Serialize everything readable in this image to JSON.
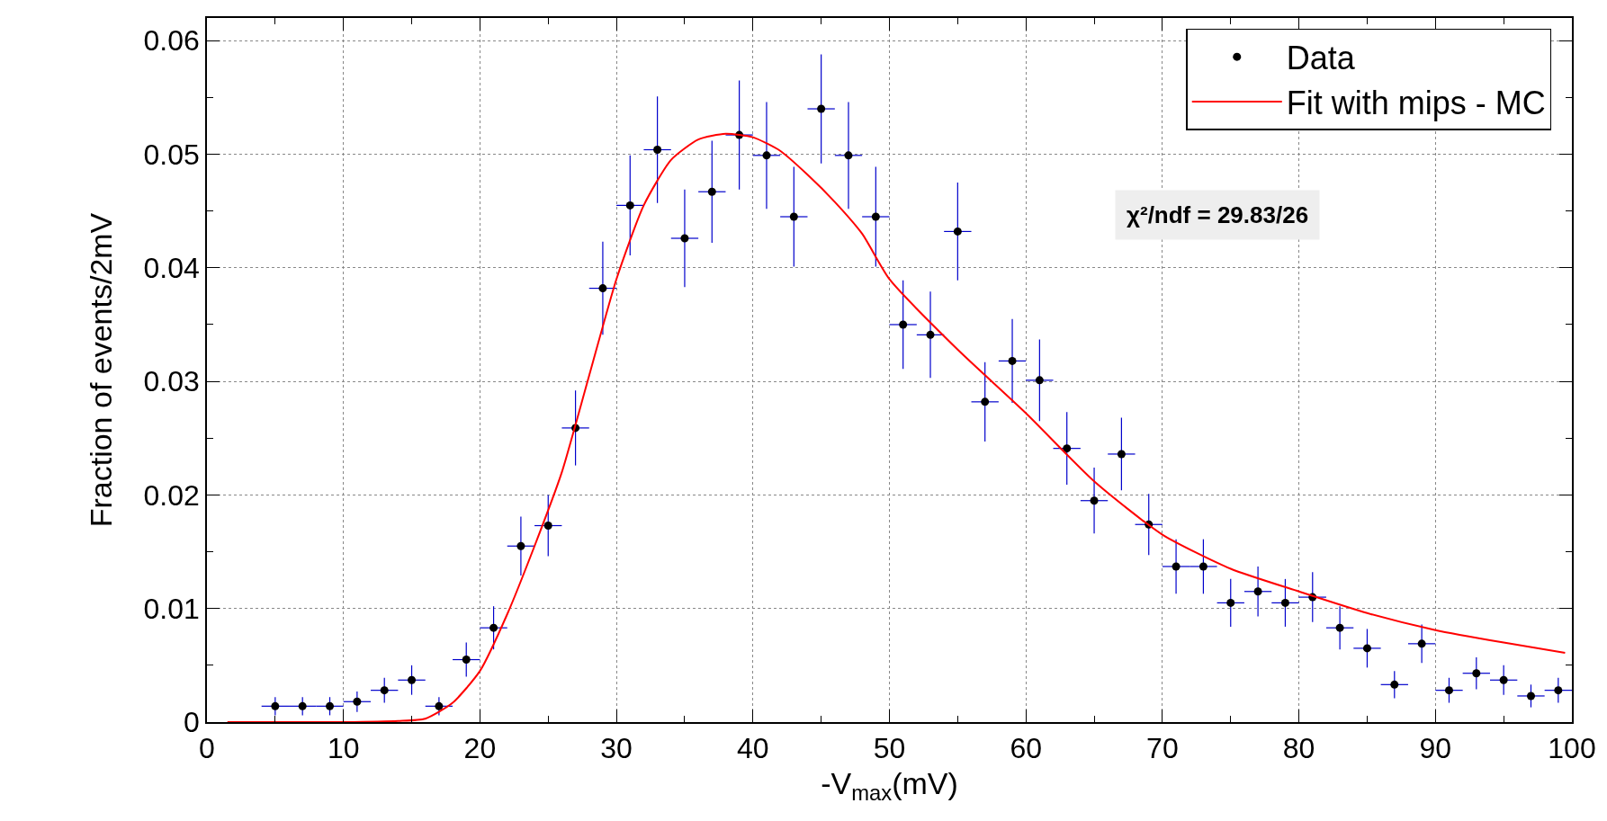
{
  "chart_data": {
    "type": "scatter",
    "xlabel": "-V$_{max}$(mV)",
    "ylabel": "Fraction of events/2mV",
    "xlim": [
      0,
      100
    ],
    "xticks": [
      0,
      10,
      20,
      30,
      40,
      50,
      60,
      70,
      80,
      90,
      100
    ],
    "ylim": [
      0,
      0.062
    ],
    "yticks": [
      0,
      0.01,
      0.02,
      0.03,
      0.04,
      0.05,
      0.06
    ],
    "grid": true,
    "legend": "top right",
    "annotations": [
      "χ²/ndf = 29.83/26"
    ],
    "series": [
      {
        "name": "Data",
        "marker": "circle",
        "color": "#000000",
        "x": [
          5,
          7,
          9,
          11,
          13,
          15,
          17,
          19,
          21,
          23,
          25,
          27,
          29,
          31,
          33,
          35,
          37,
          39,
          41,
          43,
          45,
          47,
          49,
          51,
          53,
          55,
          57,
          59,
          61,
          63,
          65,
          67,
          69,
          71,
          73,
          75,
          77,
          79,
          81,
          83,
          85,
          87,
          89,
          91,
          93,
          95,
          97,
          99
        ],
        "values": [
          0.0014,
          0.0014,
          0.0014,
          0.0018,
          0.0028,
          0.0037,
          0.0014,
          0.0055,
          0.0083,
          0.0155,
          0.0173,
          0.0259,
          0.0382,
          0.0455,
          0.0504,
          0.0426,
          0.0467,
          0.0517,
          0.0499,
          0.0445,
          0.054,
          0.0499,
          0.0445,
          0.035,
          0.0341,
          0.0432,
          0.0282,
          0.0318,
          0.0301,
          0.0241,
          0.0195,
          0.0236,
          0.0174,
          0.0137,
          0.0137,
          0.0105,
          0.0115,
          0.0105,
          0.011,
          0.0083,
          0.0065,
          0.0033,
          0.0069,
          0.0028,
          0.0043,
          0.0037,
          0.0023,
          0.0028
        ],
        "errors": [
          0.0008,
          0.0008,
          0.0008,
          0.0009,
          0.0011,
          0.0013,
          0.0008,
          0.0015,
          0.0019,
          0.0026,
          0.0027,
          0.0033,
          0.0041,
          0.0044,
          0.0047,
          0.0043,
          0.0045,
          0.0048,
          0.0047,
          0.0044,
          0.0048,
          0.0047,
          0.0044,
          0.0039,
          0.0038,
          0.0043,
          0.0035,
          0.0037,
          0.0036,
          0.0032,
          0.0029,
          0.0032,
          0.0027,
          0.0024,
          0.0024,
          0.0021,
          0.0022,
          0.0021,
          0.0022,
          0.0019,
          0.0017,
          0.0012,
          0.0017,
          0.0011,
          0.0014,
          0.0013,
          0.001,
          0.0011
        ],
        "xerrors": [
          1,
          1,
          1,
          1,
          1,
          1,
          1,
          1,
          1,
          1,
          1,
          1,
          1,
          1,
          1,
          1,
          1,
          1,
          1,
          1,
          1,
          1,
          1,
          1,
          1,
          1,
          1,
          1,
          1,
          1,
          1,
          1,
          1,
          1,
          1,
          1,
          1,
          1,
          1,
          1,
          1,
          1,
          1,
          1,
          1,
          1,
          1,
          1
        ]
      },
      {
        "name": "Fit with mips - MC",
        "type": "line",
        "color": "#ff0000",
        "x": [
          1.5,
          10,
          14,
          16,
          18,
          20,
          22,
          24,
          26,
          28,
          30,
          32,
          34,
          36,
          38,
          40,
          42,
          44,
          46,
          48,
          50,
          55,
          60,
          65,
          70,
          75,
          80,
          85,
          90,
          95,
          99.5
        ],
        "values": [
          0,
          0,
          0.0001,
          0.0003,
          0.0017,
          0.0045,
          0.0095,
          0.0155,
          0.022,
          0.0305,
          0.039,
          0.0455,
          0.0495,
          0.0513,
          0.0518,
          0.0515,
          0.0503,
          0.0482,
          0.0458,
          0.043,
          0.039,
          0.0328,
          0.0272,
          0.0212,
          0.0165,
          0.0135,
          0.0115,
          0.0096,
          0.0081,
          0.007,
          0.0061
        ]
      }
    ]
  }
}
